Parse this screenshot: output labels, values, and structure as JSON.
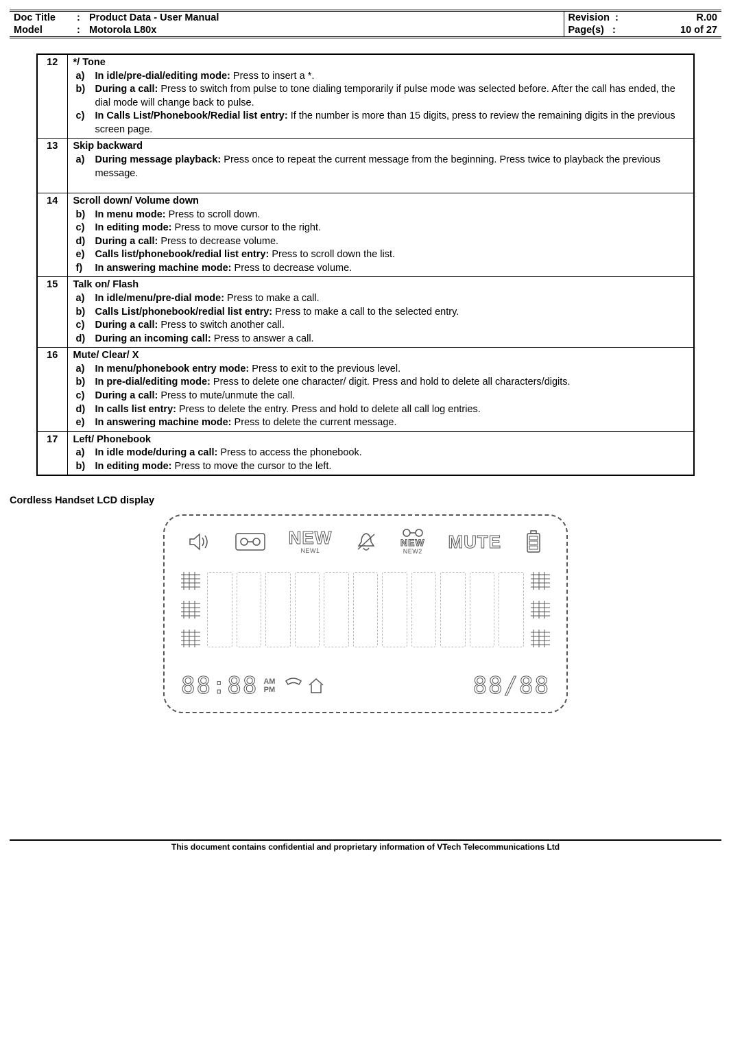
{
  "header": {
    "docTitleLabel": "Doc Title",
    "docTitle": "Product Data - User Manual",
    "modelLabel": "Model",
    "model": "Motorola L80x",
    "revisionLabel": "Revision",
    "revision": "R.00",
    "pagesLabel": "Page(s)",
    "pages": "10 of 27",
    "colon": ":"
  },
  "rows": [
    {
      "num": "12",
      "title": "*/ Tone",
      "items": [
        {
          "letter": "a)",
          "bold": "In idle/pre-dial/editing mode:",
          "text": " Press to insert a *."
        },
        {
          "letter": "b)",
          "bold": "During a call:",
          "text": " Press to switch from pulse to tone dialing temporarily if pulse mode was selected before. After the call has ended, the dial mode will change back to pulse."
        },
        {
          "letter": "c)",
          "bold": "In Calls List/Phonebook/Redial list entry:",
          "text": " If the number is more than 15 digits, press to review the remaining digits in the previous screen page."
        }
      ]
    },
    {
      "num": "13",
      "title": "Skip backward",
      "items": [
        {
          "letter": "a)",
          "bold": "During message playback:",
          "text": " Press once to repeat the current message from the beginning. Press twice to playback the previous message."
        }
      ],
      "trailingBlank": true
    },
    {
      "num": "14",
      "title": "Scroll down/ Volume down",
      "items": [
        {
          "letter": "b)",
          "bold": "In menu mode:",
          "text": " Press to scroll down."
        },
        {
          "letter": "c)",
          "bold": "In editing mode:",
          "text": " Press to move cursor to the right."
        },
        {
          "letter": "d)",
          "bold": "During a call:",
          "text": " Press to decrease volume."
        },
        {
          "letter": "e)",
          "bold": "Calls list/phonebook/redial list entry:",
          "text": " Press to scroll down the list."
        },
        {
          "letter": "f)",
          "bold": " In answering machine mode:",
          "text": " Press to decrease volume."
        }
      ]
    },
    {
      "num": "15",
      "title": "Talk on/ Flash",
      "items": [
        {
          "letter": "a)",
          "bold": "In idle/menu/pre-dial mode:",
          "text": " Press to make a call."
        },
        {
          "letter": "b)",
          "bold": "Calls List/phonebook/redial list entry:",
          "text": " Press to make a call to the selected entry."
        },
        {
          "letter": "c)",
          "bold": "During a call:",
          "text": " Press to switch another call."
        },
        {
          "letter": "d)",
          "bold": "During an incoming call:",
          "text": " Press to answer a call."
        }
      ]
    },
    {
      "num": "16",
      "title": " Mute/ Clear/ X",
      "items": [
        {
          "letter": "a)",
          "bold": "In menu/phonebook entry mode:",
          "text": " Press to exit to the previous level."
        },
        {
          "letter": "b)",
          "bold": "In pre-dial/editing mode:",
          "text": " Press to delete one character/ digit. Press and hold to delete all characters/digits."
        },
        {
          "letter": "c)",
          "bold": "During a call:",
          "text": " Press to mute/unmute the call."
        },
        {
          "letter": "d)",
          "bold": "In calls list entry:",
          "text": " Press to delete the entry. Press and hold to delete all call log entries."
        },
        {
          "letter": "e)",
          "bold": "In answering machine mode:",
          "text": " Press to delete the current message."
        }
      ]
    },
    {
      "num": "17",
      "title": "Left/ Phonebook",
      "items": [
        {
          "letter": "a)",
          "bold": "In idle mode/during a call:",
          "text": " Press to access the phonebook."
        },
        {
          "letter": "b)",
          "bold": "In editing mode:",
          "text": " Press to move the cursor to the left."
        }
      ]
    }
  ],
  "sectionHeading": "Cordless Handset LCD display",
  "lcd": {
    "new1": "NEW",
    "new1sub": "NEW1",
    "new2": "NEW",
    "new2sub": "NEW2",
    "mute": "MUTE",
    "am": "AM",
    "pm": "PM",
    "segLeft": "88:88",
    "segRight": "88/88"
  },
  "footer": "This document contains confidential and proprietary information of VTech Telecommunications Ltd"
}
